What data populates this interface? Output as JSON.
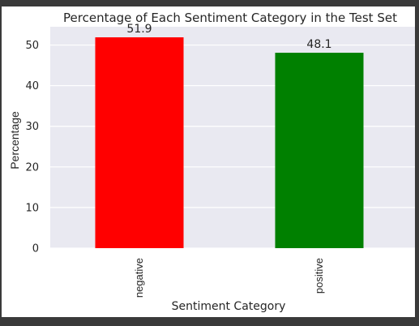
{
  "chart_data": {
    "type": "bar",
    "title": "Percentage of Each Sentiment Category in the Test Set",
    "xlabel": "Sentiment Category",
    "ylabel": "Percentage",
    "categories": [
      "negative",
      "positive"
    ],
    "values": [
      51.9,
      48.1
    ],
    "data_labels": [
      "51.9",
      "48.1"
    ],
    "bar_colors": [
      "#ff0000",
      "#008000"
    ],
    "ylim": [
      0,
      54.5
    ],
    "yticks": [
      0,
      10,
      20,
      30,
      40,
      50
    ],
    "grid": true,
    "plot_background": "#e9e9f1"
  }
}
